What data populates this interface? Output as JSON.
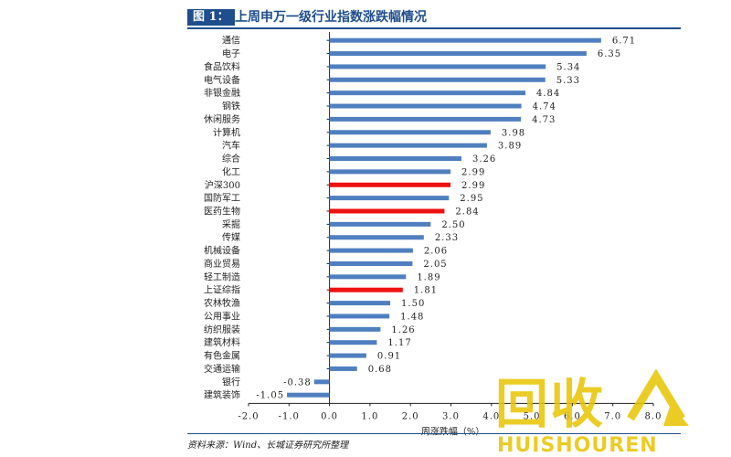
{
  "figure": {
    "label": "图 1：",
    "title": "上周申万一级行业指数涨跌幅情况",
    "source": "资料来源：Wind、长城证券研究所整理"
  },
  "watermark": {
    "text": "回收",
    "subtext": "HUISHOUREN",
    "color": "#e8c400"
  },
  "colors": {
    "bar": "#4f7fbf",
    "highlight": "#ee1111",
    "title": "#1f4e8c"
  },
  "chart_data": {
    "type": "bar",
    "orientation": "horizontal",
    "xlabel": "周涨跌幅（%）",
    "xlim": [
      -2.0,
      8.0
    ],
    "xticks": [
      "-2.0",
      "-1.0",
      "0.0",
      "1.0",
      "2.0",
      "3.0",
      "4.0",
      "5.0",
      "6.0",
      "7.0",
      "8.0"
    ],
    "categories": [
      "通信",
      "电子",
      "食品饮料",
      "电气设备",
      "非银金融",
      "钢铁",
      "休闲服务",
      "计算机",
      "汽车",
      "综合",
      "化工",
      "沪深300",
      "国防军工",
      "医药生物",
      "采掘",
      "传媒",
      "机械设备",
      "商业贸易",
      "轻工制造",
      "上证综指",
      "农林牧渔",
      "公用事业",
      "纺织服装",
      "建筑材料",
      "有色金属",
      "交通运输",
      "银行",
      "建筑装饰"
    ],
    "values": [
      6.71,
      6.35,
      5.34,
      5.33,
      4.84,
      4.74,
      4.73,
      3.98,
      3.89,
      3.26,
      2.99,
      2.99,
      2.95,
      2.84,
      2.5,
      2.33,
      2.06,
      2.05,
      1.89,
      1.81,
      1.5,
      1.48,
      1.26,
      1.17,
      0.91,
      0.68,
      -0.38,
      -1.05
    ],
    "value_labels": [
      "6.71",
      "6.35",
      "5.34",
      "5.33",
      "4.84",
      "4.74",
      "4.73",
      "3.98",
      "3.89",
      "3.26",
      "2.99",
      "2.99",
      "2.95",
      "2.84",
      "2.50",
      "2.33",
      "2.06",
      "2.05",
      "1.89",
      "1.81",
      "1.50",
      "1.48",
      "1.26",
      "1.17",
      "0.91",
      "0.68",
      "-0.38",
      "-1.05"
    ],
    "highlighted": [
      "沪深300",
      "医药生物",
      "上证综指"
    ],
    "grid": false,
    "legend": "none"
  }
}
